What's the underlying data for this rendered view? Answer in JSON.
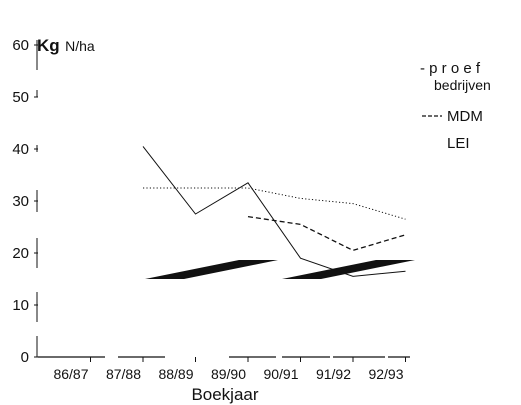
{
  "chart_data": {
    "type": "line",
    "title": "",
    "ylabel_main": "Kg",
    "ylabel_unit": "N/ha",
    "xlabel": "Boekjaar",
    "categories": [
      "86/87",
      "87/88",
      "88/89",
      "89/90",
      "90/91",
      "91/92",
      "92/93"
    ],
    "yticks": [
      "0",
      "10",
      "20",
      "30",
      "40",
      "50",
      "60"
    ],
    "ylim": [
      0,
      60
    ],
    "grid": false,
    "legend_position": "right",
    "legend": {
      "line1": "- p r o e f",
      "line2": "bedrijven",
      "line3": "MDM",
      "line4": "LEI"
    },
    "series": [
      {
        "name": "proef bedrijven",
        "style": "solid",
        "color": "#111111",
        "x": [
          "87/88",
          "88/89",
          "89/90",
          "90/91",
          "91/92",
          "92/93"
        ],
        "values": [
          40.5,
          27.5,
          33.5,
          19,
          15.5,
          16.5
        ]
      },
      {
        "name": "MDM",
        "style": "dashed",
        "color": "#111111",
        "x": [
          "89/90",
          "90/91",
          "91/92",
          "92/93"
        ],
        "values": [
          27,
          25.5,
          20.5,
          23.5
        ]
      },
      {
        "name": "LEI",
        "style": "dotted",
        "color": "#111111",
        "x": [
          "87/88",
          "88/89",
          "89/90",
          "90/91",
          "91/92",
          "92/93"
        ],
        "values": [
          32.5,
          32.5,
          32.5,
          30.5,
          29.5,
          26.5
        ]
      }
    ]
  }
}
